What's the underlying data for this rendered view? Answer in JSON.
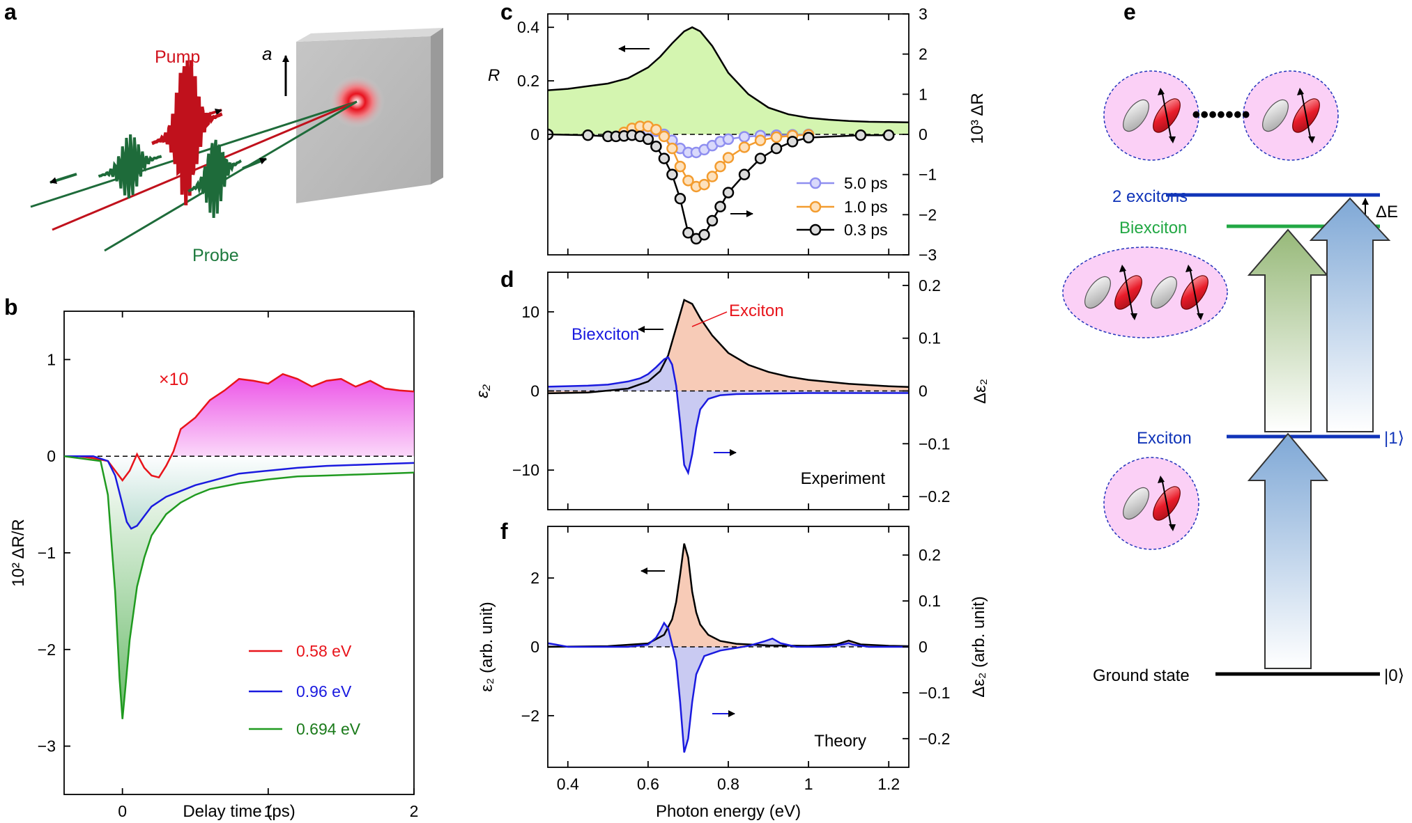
{
  "panel_labels": {
    "a": "a",
    "b": "b",
    "c": "c",
    "d": "d",
    "e": "e",
    "f": "f"
  },
  "panel_a": {
    "pump": "Pump",
    "probe": "Probe",
    "axis": "a"
  },
  "colors": {
    "red": "#e8141b",
    "blue": "#1a1adf",
    "green": "#1f9a1f",
    "orange": "#f39c2f",
    "lavender": "#8f8ff0",
    "black": "#000000",
    "pump": "#c0111c",
    "probe": "#1e6b3a",
    "state_blue": "#1034b8",
    "state_green": "#22a844"
  },
  "chart_data": [
    {
      "id": "b",
      "type": "line",
      "xlabel": "Delay time (ps)",
      "ylabel": "10² ΔR/R",
      "xlim": [
        -0.4,
        2.0
      ],
      "ylim": [
        -3.5,
        1.5
      ],
      "xticks": [
        0,
        1,
        2
      ],
      "xtick_labels": [
        "0",
        "1",
        "2"
      ],
      "yticks": [
        -3,
        -2,
        -1,
        0,
        1
      ],
      "ytick_labels": [
        "−3",
        "−2",
        "−1",
        "0",
        "1"
      ],
      "annotation": "×10",
      "series": [
        {
          "name": "0.58 eV",
          "color": "red",
          "x": [
            -0.4,
            -0.3,
            -0.2,
            -0.1,
            0.0,
            0.05,
            0.1,
            0.15,
            0.2,
            0.25,
            0.3,
            0.35,
            0.4,
            0.5,
            0.6,
            0.7,
            0.8,
            0.9,
            1.0,
            1.1,
            1.2,
            1.3,
            1.4,
            1.5,
            1.6,
            1.7,
            1.8,
            1.9,
            2.0
          ],
          "y": [
            0.0,
            0.0,
            -0.02,
            -0.05,
            -0.25,
            -0.15,
            0.02,
            -0.12,
            -0.2,
            -0.22,
            -0.1,
            0.05,
            0.28,
            0.4,
            0.58,
            0.68,
            0.8,
            0.78,
            0.75,
            0.85,
            0.8,
            0.72,
            0.78,
            0.8,
            0.72,
            0.78,
            0.7,
            0.68,
            0.67
          ]
        },
        {
          "name": "0.96 eV",
          "color": "blue",
          "x": [
            -0.4,
            -0.2,
            -0.1,
            -0.05,
            0.0,
            0.03,
            0.06,
            0.1,
            0.15,
            0.2,
            0.3,
            0.4,
            0.5,
            0.6,
            0.7,
            0.8,
            1.0,
            1.2,
            1.4,
            1.6,
            1.8,
            2.0
          ],
          "y": [
            0.0,
            0.0,
            -0.05,
            -0.2,
            -0.5,
            -0.68,
            -0.75,
            -0.72,
            -0.62,
            -0.52,
            -0.42,
            -0.36,
            -0.3,
            -0.26,
            -0.22,
            -0.18,
            -0.15,
            -0.12,
            -0.1,
            -0.09,
            -0.08,
            -0.07
          ]
        },
        {
          "name": "0.694 eV",
          "color": "green",
          "x": [
            -0.4,
            -0.15,
            -0.1,
            -0.05,
            -0.02,
            0.0,
            0.02,
            0.05,
            0.1,
            0.15,
            0.2,
            0.3,
            0.4,
            0.5,
            0.6,
            0.8,
            1.0,
            1.2,
            1.4,
            1.6,
            1.8,
            2.0
          ],
          "y": [
            0.0,
            -0.05,
            -0.4,
            -1.4,
            -2.3,
            -2.72,
            -2.4,
            -1.9,
            -1.35,
            -1.05,
            -0.82,
            -0.6,
            -0.48,
            -0.4,
            -0.34,
            -0.28,
            -0.24,
            -0.21,
            -0.2,
            -0.19,
            -0.18,
            -0.17
          ]
        }
      ]
    },
    {
      "id": "c",
      "type": "line",
      "xlabel": "",
      "ylabel": "R",
      "y2label": "10³ ΔR",
      "xlim": [
        0.35,
        1.25
      ],
      "ylim": [
        -0.45,
        0.45
      ],
      "y2lim": [
        -3.0,
        3.0
      ],
      "xticks": [
        0.4,
        0.6,
        0.8,
        1.0,
        1.2
      ],
      "yticks": [
        0,
        0.2,
        0.4
      ],
      "ytick_labels": [
        "0",
        "0.2",
        "0.4"
      ],
      "y2ticks": [
        -3,
        -2,
        -1,
        0,
        1,
        2,
        3
      ],
      "y2tick_labels": [
        "−3",
        "−2",
        "−1",
        "0",
        "1",
        "2",
        "3"
      ],
      "series": [
        {
          "name": "R",
          "axis": "left",
          "color": "black",
          "fill": "#d4f5b0",
          "x": [
            0.35,
            0.4,
            0.45,
            0.5,
            0.55,
            0.6,
            0.63,
            0.66,
            0.69,
            0.71,
            0.73,
            0.76,
            0.8,
            0.85,
            0.9,
            0.95,
            1.0,
            1.05,
            1.1,
            1.15,
            1.2,
            1.25
          ],
          "y": [
            0.165,
            0.17,
            0.18,
            0.19,
            0.21,
            0.25,
            0.29,
            0.34,
            0.385,
            0.4,
            0.385,
            0.33,
            0.23,
            0.15,
            0.1,
            0.075,
            0.062,
            0.055,
            0.05,
            0.047,
            0.046,
            0.045
          ]
        },
        {
          "name": "5.0 ps",
          "axis": "right",
          "color": "lavender",
          "x": [
            0.54,
            0.56,
            0.58,
            0.6,
            0.62,
            0.64,
            0.66,
            0.68,
            0.7,
            0.72,
            0.74,
            0.76,
            0.78,
            0.8,
            0.84,
            0.88,
            0.92,
            0.96,
            1.0
          ],
          "y": [
            0.0,
            0.05,
            0.08,
            0.1,
            0.08,
            0.0,
            -0.15,
            -0.35,
            -0.45,
            -0.45,
            -0.38,
            -0.28,
            -0.18,
            -0.12,
            -0.06,
            -0.03,
            -0.02,
            -0.01,
            0.0
          ]
        },
        {
          "name": "1.0 ps",
          "axis": "right",
          "color": "orange",
          "x": [
            0.54,
            0.56,
            0.58,
            0.6,
            0.62,
            0.64,
            0.66,
            0.68,
            0.7,
            0.72,
            0.74,
            0.76,
            0.78,
            0.8,
            0.84,
            0.88,
            0.92,
            0.96,
            1.0
          ],
          "y": [
            0.05,
            0.15,
            0.2,
            0.2,
            0.12,
            -0.05,
            -0.35,
            -0.8,
            -1.15,
            -1.3,
            -1.25,
            -1.05,
            -0.8,
            -0.58,
            -0.32,
            -0.15,
            -0.07,
            -0.03,
            -0.01
          ]
        },
        {
          "name": "0.3 ps",
          "axis": "right",
          "color": "black",
          "x": [
            0.35,
            0.45,
            0.5,
            0.52,
            0.54,
            0.56,
            0.58,
            0.6,
            0.62,
            0.64,
            0.66,
            0.68,
            0.7,
            0.72,
            0.74,
            0.76,
            0.78,
            0.8,
            0.84,
            0.88,
            0.92,
            0.96,
            1.0,
            1.13,
            1.2
          ],
          "y": [
            0.0,
            -0.02,
            -0.05,
            -0.05,
            -0.04,
            -0.02,
            -0.05,
            -0.12,
            -0.3,
            -0.6,
            -1.0,
            -1.6,
            -2.45,
            -2.6,
            -2.5,
            -2.15,
            -1.8,
            -1.45,
            -1.0,
            -0.6,
            -0.35,
            -0.18,
            -0.08,
            -0.02,
            -0.02
          ]
        }
      ]
    },
    {
      "id": "d",
      "type": "line",
      "ylabel": "ε₂",
      "y2label": "Δε₂",
      "xlim": [
        0.35,
        1.25
      ],
      "ylim": [
        -15,
        15
      ],
      "y2lim": [
        -0.225,
        0.225
      ],
      "xticks": [
        0.4,
        0.6,
        0.8,
        1.0,
        1.2
      ],
      "yticks": [
        -10,
        0,
        10
      ],
      "ytick_labels": [
        "−10",
        "0",
        "10"
      ],
      "y2ticks": [
        -0.2,
        -0.1,
        0,
        0.1,
        0.2
      ],
      "y2tick_labels": [
        "−0.2",
        "−0.1",
        "0",
        "0.1",
        "0.2"
      ],
      "annotations": {
        "exciton": "Exciton",
        "biexciton": "Biexciton",
        "corner": "Experiment"
      },
      "series": [
        {
          "name": "ε₂",
          "axis": "left",
          "color": "black",
          "fill": "#f7cbb7",
          "x": [
            0.35,
            0.45,
            0.55,
            0.6,
            0.63,
            0.65,
            0.67,
            0.69,
            0.71,
            0.73,
            0.76,
            0.8,
            0.85,
            0.9,
            0.95,
            1.0,
            1.1,
            1.2,
            1.25
          ],
          "y": [
            -0.3,
            -0.2,
            0.3,
            1.2,
            2.5,
            4.5,
            8.0,
            11.5,
            11.0,
            9.2,
            7.0,
            4.8,
            3.3,
            2.4,
            1.8,
            1.4,
            0.9,
            0.6,
            0.5
          ]
        },
        {
          "name": "Δε₂",
          "axis": "right",
          "color": "blue",
          "fill": "#c9caf2",
          "x": [
            0.35,
            0.45,
            0.5,
            0.55,
            0.58,
            0.6,
            0.62,
            0.64,
            0.65,
            0.66,
            0.67,
            0.68,
            0.69,
            0.7,
            0.71,
            0.72,
            0.73,
            0.75,
            0.78,
            0.82,
            0.9,
            1.0,
            1.1,
            1.25
          ],
          "y": [
            0.008,
            0.01,
            0.012,
            0.018,
            0.024,
            0.032,
            0.045,
            0.06,
            0.064,
            0.05,
            0.01,
            -0.06,
            -0.14,
            -0.155,
            -0.12,
            -0.07,
            -0.035,
            -0.015,
            -0.008,
            -0.006,
            -0.005,
            -0.004,
            -0.004,
            -0.004
          ]
        }
      ]
    },
    {
      "id": "f",
      "type": "line",
      "xlabel": "Photon energy (eV)",
      "ylabel": "ε₂ (arb. unit)",
      "y2label": "Δε₂ (arb. unit)",
      "xlim": [
        0.35,
        1.25
      ],
      "ylim": [
        -3.5,
        3.5
      ],
      "y2lim": [
        -0.2625,
        0.2625
      ],
      "xticks": [
        0.4,
        0.6,
        0.8,
        1.0,
        1.2
      ],
      "xtick_labels": [
        "0.4",
        "0.6",
        "0.8",
        "1",
        "1.2"
      ],
      "yticks": [
        -2,
        0,
        2
      ],
      "ytick_labels": [
        "−2",
        "0",
        "2"
      ],
      "y2ticks": [
        -0.2,
        -0.1,
        0,
        0.1,
        0.2
      ],
      "y2tick_labels": [
        "−0.2",
        "−0.1",
        "0",
        "0.1",
        "0.2"
      ],
      "annotations": {
        "corner": "Theory"
      },
      "series": [
        {
          "name": "ε₂",
          "axis": "left",
          "color": "black",
          "fill": "#f7cbb7",
          "x": [
            0.35,
            0.5,
            0.6,
            0.64,
            0.66,
            0.67,
            0.68,
            0.69,
            0.7,
            0.71,
            0.72,
            0.73,
            0.75,
            0.78,
            0.82,
            0.9,
            1.0,
            1.07,
            1.1,
            1.13,
            1.2,
            1.25
          ],
          "y": [
            0.0,
            0.02,
            0.1,
            0.35,
            0.8,
            1.3,
            2.1,
            3.0,
            2.6,
            1.6,
            1.0,
            0.65,
            0.35,
            0.17,
            0.09,
            0.04,
            0.03,
            0.07,
            0.18,
            0.07,
            0.03,
            0.02
          ]
        },
        {
          "name": "Δε₂",
          "axis": "right",
          "color": "blue",
          "fill": "#c9caf2",
          "x": [
            0.35,
            0.37,
            0.4,
            0.45,
            0.55,
            0.6,
            0.62,
            0.63,
            0.64,
            0.65,
            0.66,
            0.67,
            0.68,
            0.69,
            0.7,
            0.71,
            0.72,
            0.74,
            0.78,
            0.85,
            0.89,
            0.91,
            0.93,
            0.97,
            1.05,
            1.09,
            1.1,
            1.11,
            1.15,
            1.25
          ],
          "y": [
            0.008,
            0.005,
            0.0,
            0.0,
            0.0,
            0.005,
            0.02,
            0.035,
            0.052,
            0.04,
            0.005,
            -0.03,
            -0.12,
            -0.23,
            -0.2,
            -0.12,
            -0.06,
            -0.02,
            -0.008,
            0.002,
            0.012,
            0.018,
            0.008,
            0.0,
            0.0,
            0.006,
            0.008,
            0.005,
            0.0,
            0.0
          ]
        }
      ]
    }
  ],
  "panel_e": {
    "states": {
      "two_excitons": "2 excitons",
      "biexciton": "Biexciton",
      "exciton": "Exciton",
      "ground": "Ground state",
      "ket1": "|1⟩",
      "ket0": "|0⟩",
      "delta_e": "ΔE"
    },
    "dots": "•••••••"
  }
}
